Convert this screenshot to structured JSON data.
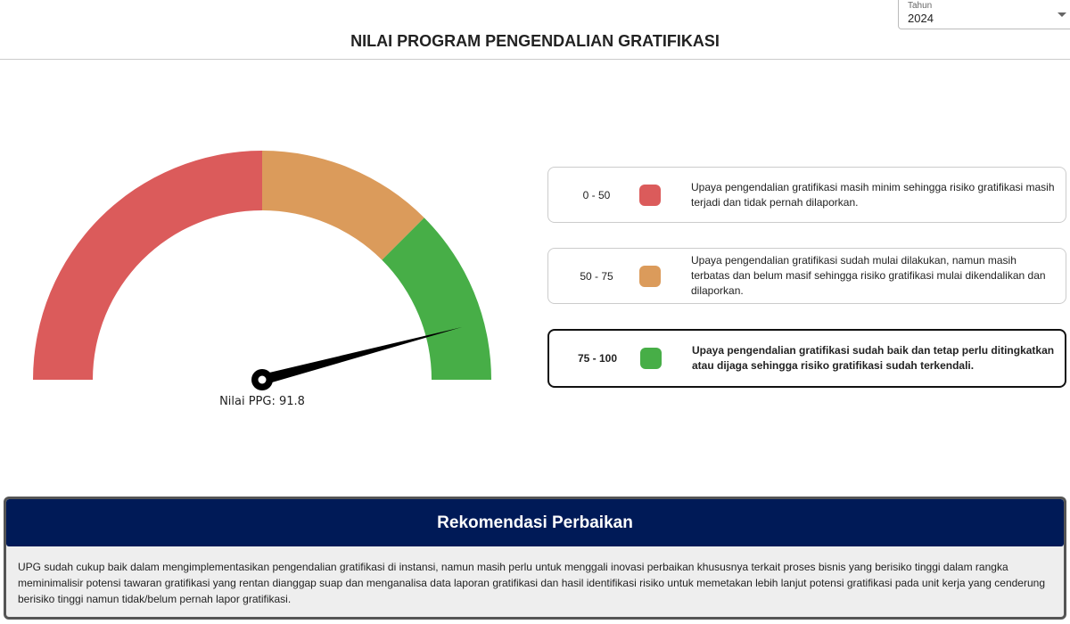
{
  "header": {
    "title": "NILAI PROGRAM PENGENDALIAN GRATIFIKASI"
  },
  "year_select": {
    "label": "Tahun",
    "value": "2024"
  },
  "gauge": {
    "value": 91.8,
    "min": 0,
    "max": 100,
    "label": "Nilai PPG: 91.8",
    "bands": [
      {
        "from": 0,
        "to": 50,
        "color": "#db5b5b"
      },
      {
        "from": 50,
        "to": 75,
        "color": "#db9b5b"
      },
      {
        "from": 75,
        "to": 100,
        "color": "#47ae47"
      }
    ]
  },
  "legend": [
    {
      "range": "0 - 50",
      "color": "#db5b5b",
      "text": "Upaya pengendalian gratifikasi masih minim sehingga risiko gratifikasi masih terjadi dan tidak pernah dilaporkan.",
      "active": false
    },
    {
      "range": "50 - 75",
      "color": "#db9b5b",
      "text": "Upaya pengendalian gratifikasi sudah mulai dilakukan, namun masih terbatas dan belum masif sehingga risiko gratifikasi mulai dikendalikan dan dilaporkan.",
      "active": false
    },
    {
      "range": "75 - 100",
      "color": "#47ae47",
      "text": "Upaya pengendalian gratifikasi sudah baik dan tetap perlu ditingkatkan atau dijaga sehingga risiko gratifikasi sudah terkendali.",
      "active": true
    }
  ],
  "recommendation": {
    "title": "Rekomendasi Perbaikan",
    "text": "UPG sudah cukup baik dalam mengimplementasikan pengendalian gratifikasi di instansi, namun masih perlu untuk menggali inovasi perbaikan khususnya terkait proses bisnis yang berisiko tinggi dalam rangka meminimalisir potensi tawaran gratifikasi yang rentan dianggap suap dan menganalisa data laporan gratifikasi dan hasil identifikasi risiko untuk memetakan lebih lanjut potensi gratifikasi pada unit kerja yang cenderung berisiko tinggi namun tidak/belum pernah lapor gratifikasi."
  }
}
